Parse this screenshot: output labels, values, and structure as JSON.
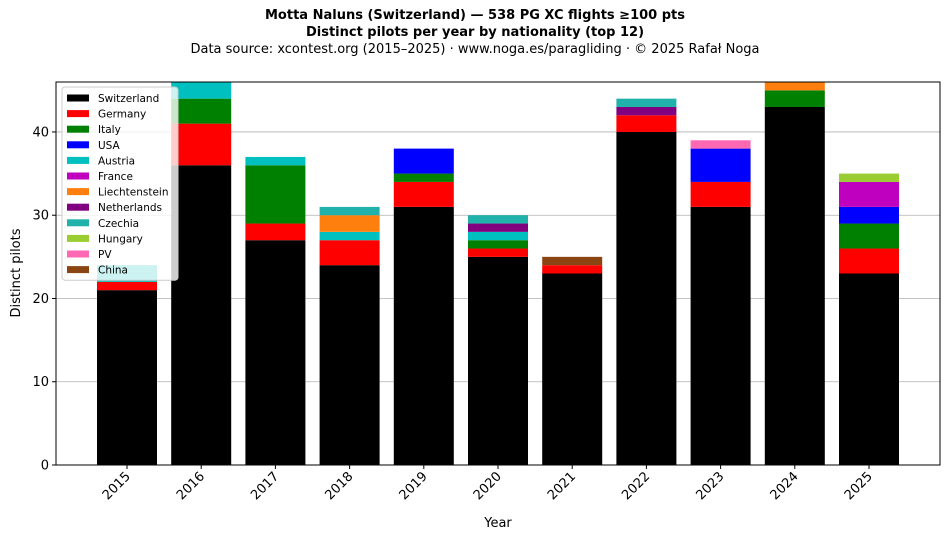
{
  "chart_data": {
    "type": "bar",
    "stacked": true,
    "title": "Motta Naluns (Switzerland)  —  538 PG XC flights ≥100 pts",
    "subtitle": "Distinct pilots per year by nationality (top 12)",
    "source": "Data source: xcontest.org (2015–2025)  ·  www.noga.es/paragliding  ·  © 2025 Rafał Noga",
    "xlabel": "Year",
    "ylabel": "Distinct pilots",
    "ylim": [
      0,
      46
    ],
    "yticks": [
      0,
      10,
      20,
      30,
      40
    ],
    "grid": "y",
    "legend_position": "upper-left",
    "categories": [
      "2015",
      "2016",
      "2017",
      "2018",
      "2019",
      "2020",
      "2021",
      "2022",
      "2023",
      "2024",
      "2025"
    ],
    "series": [
      {
        "name": "Switzerland",
        "color": "#000000",
        "values": [
          21,
          36,
          27,
          24,
          31,
          25,
          23,
          40,
          31,
          43,
          23
        ]
      },
      {
        "name": "Germany",
        "color": "#ff0000",
        "values": [
          1,
          5,
          2,
          3,
          3,
          1,
          1,
          2,
          3,
          0,
          3
        ]
      },
      {
        "name": "Italy",
        "color": "#008000",
        "values": [
          0,
          3,
          7,
          0,
          1,
          1,
          0,
          0,
          0,
          2,
          3
        ]
      },
      {
        "name": "USA",
        "color": "#0000ff",
        "values": [
          0,
          0,
          0,
          0,
          3,
          0,
          0,
          0,
          4,
          0,
          2
        ]
      },
      {
        "name": "Austria",
        "color": "#00bfbf",
        "values": [
          2,
          2,
          1,
          1,
          0,
          1,
          0,
          0,
          0,
          0,
          0
        ]
      },
      {
        "name": "France",
        "color": "#bf00bf",
        "values": [
          0,
          0,
          0,
          0,
          0,
          0,
          0,
          0,
          0,
          0,
          3
        ]
      },
      {
        "name": "Liechtenstein",
        "color": "#ff7f0e",
        "values": [
          0,
          0,
          0,
          2,
          0,
          0,
          0,
          0,
          0,
          1,
          0
        ]
      },
      {
        "name": "Netherlands",
        "color": "#800080",
        "values": [
          0,
          0,
          0,
          0,
          0,
          1,
          0,
          1,
          0,
          0,
          0
        ]
      },
      {
        "name": "Czechia",
        "color": "#20b2aa",
        "values": [
          0,
          0,
          0,
          1,
          0,
          1,
          0,
          1,
          0,
          0,
          0
        ]
      },
      {
        "name": "Hungary",
        "color": "#9acd32",
        "values": [
          0,
          0,
          0,
          0,
          0,
          0,
          0,
          0,
          0,
          0,
          1
        ]
      },
      {
        "name": "PV",
        "color": "#ff69b4",
        "values": [
          0,
          0,
          0,
          0,
          0,
          0,
          0,
          0,
          1,
          0,
          0
        ]
      },
      {
        "name": "China",
        "color": "#8b4513",
        "values": [
          0,
          0,
          0,
          0,
          0,
          0,
          1,
          0,
          0,
          0,
          0
        ]
      }
    ]
  }
}
